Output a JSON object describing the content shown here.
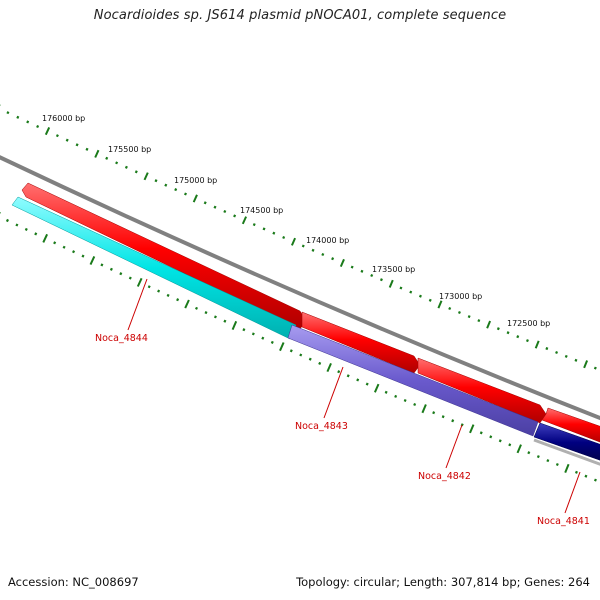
{
  "title": "Nocardioides sp. JS614 plasmid pNOCA01, complete sequence",
  "footer": {
    "accession": "Accession: NC_008697",
    "summary": "Topology: circular; Length: 307,814 bp; Genes: 264"
  },
  "colors": {
    "backbone": "#808080",
    "tick": "#1a7a1a",
    "forward_gene": "#ff0000",
    "label": "#cc0000"
  },
  "ticks": [
    {
      "label": "176000 bp"
    },
    {
      "label": "175500 bp"
    },
    {
      "label": "175000 bp"
    },
    {
      "label": "174500 bp"
    },
    {
      "label": "174000 bp"
    },
    {
      "label": "173500 bp"
    },
    {
      "label": "173000 bp"
    },
    {
      "label": "172500 bp"
    }
  ],
  "genes": [
    {
      "name": "Noca_4844",
      "strand": "reverse",
      "color": "#00e5e5"
    },
    {
      "name": "Noca_4843",
      "strand": "reverse",
      "color": "#6a5acd"
    },
    {
      "name": "Noca_4842",
      "strand": "forward",
      "color": "#ff0000"
    },
    {
      "name": "Noca_4841",
      "strand": "reverse",
      "color": "#000080"
    }
  ]
}
